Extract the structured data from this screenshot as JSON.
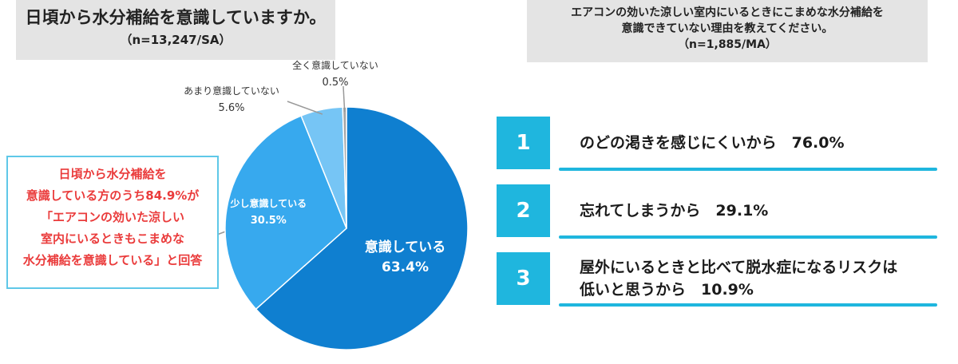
{
  "left_panel": {
    "title": "日頃から水分補給を意識していますか。",
    "subtitle": "（n=13,247/SA）"
  },
  "callout": {
    "lines": [
      "日頃から水分補給を",
      "意識している方のうち84.9%が",
      "「エアコンの効いた涼しい",
      "室内にいるときもこまめな",
      "水分補給を意識している」と回答"
    ]
  },
  "right_panel": {
    "title_lines": [
      "エアコンの効いた涼しい室内にいるときにこまめな水分補給を",
      "意識できていない理由を教えてください。",
      "（n=1,885/MA）"
    ],
    "ranking": [
      {
        "rank": "1",
        "text_lines": [
          "のどの渇きを感じにくいから　76.0%"
        ]
      },
      {
        "rank": "2",
        "text_lines": [
          "忘れてしまうから　29.1%"
        ]
      },
      {
        "rank": "3",
        "text_lines": [
          "屋外にいるときと比べて脱水症になるリスクは",
          "低いと思うから　10.9%"
        ]
      }
    ]
  },
  "chart_data": {
    "type": "pie",
    "title": "日頃から水分補給を意識していますか。",
    "slices": [
      {
        "label": "意識している",
        "value": 63.4,
        "value_label": "63.4%",
        "color": "#0f7fd0"
      },
      {
        "label": "少し意識している",
        "value": 30.5,
        "value_label": "30.5%",
        "color": "#37a9ee"
      },
      {
        "label": "あまり意識していない",
        "value": 5.6,
        "value_label": "5.6%",
        "color": "#76c5f5"
      },
      {
        "label": "全く意識していない",
        "value": 0.5,
        "value_label": "0.5%",
        "color": "#a6a6a6"
      }
    ]
  }
}
